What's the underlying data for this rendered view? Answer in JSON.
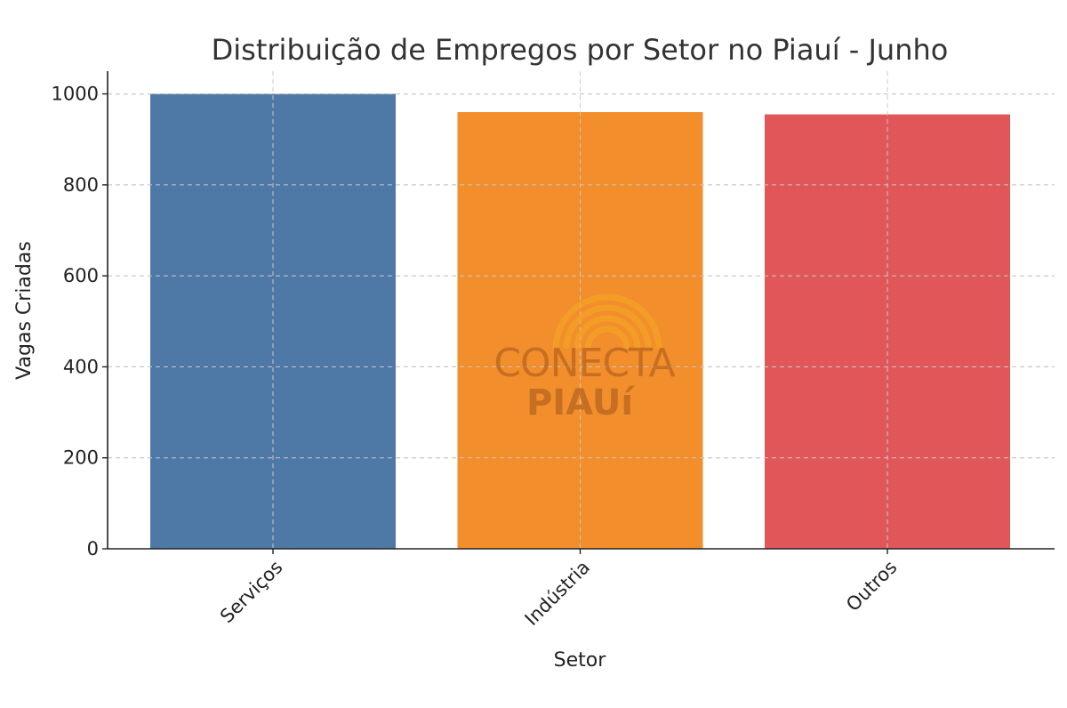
{
  "chart_data": {
    "type": "bar",
    "title": "Distribuição de Empregos por Setor no Piauí - Junho",
    "xlabel": "Setor",
    "ylabel": "Vagas Criadas",
    "categories": [
      "Serviços",
      "Indústria",
      "Outros"
    ],
    "values": [
      1000,
      960,
      955
    ],
    "colors": [
      "#4e79a7",
      "#f28e2b",
      "#e15759"
    ],
    "ylim": [
      0,
      1050
    ],
    "yticks": [
      0,
      200,
      400,
      600,
      800,
      1000
    ],
    "grid": true,
    "x_tick_rotation_deg": -45
  },
  "watermark": {
    "line1": "CONECTA",
    "line2": "PIAUí",
    "color": "#b8651f",
    "arc_color": "#f5a623"
  }
}
